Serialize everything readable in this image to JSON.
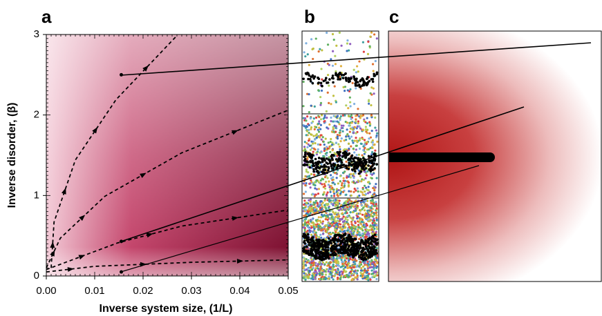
{
  "chart_data": {
    "type": "line",
    "panel_labels": [
      "a",
      "b",
      "c"
    ],
    "x_label": "Inverse system size, (1/L)",
    "y_label": "Inverse disorder, (β)",
    "xlim": [
      0,
      0.05
    ],
    "ylim": [
      0,
      3
    ],
    "xticks": [
      {
        "value": 0,
        "label": "0.00"
      },
      0.01,
      0.02,
      0.03,
      0.04,
      0.05
    ],
    "yticks": [
      0,
      1,
      2,
      3
    ],
    "series": [
      {
        "color": "#000000",
        "x": [
          0.001,
          0.0016,
          0.006,
          0.0144,
          0.0269
        ],
        "values": [
          0.1,
          0.67,
          1.44,
          2.19,
          2.98
        ]
      },
      {
        "color": "#000000",
        "x": [
          0,
          0.0029,
          0.0121,
          0.028,
          0.05
        ],
        "values": [
          0.1,
          0.47,
          0.99,
          1.53,
          2.06
        ]
      },
      {
        "color": "#000000",
        "x": [
          0,
          0.0147,
          0.028,
          0.05
        ],
        "values": [
          0.08,
          0.41,
          0.62,
          0.82
        ]
      },
      {
        "color": "#000000",
        "x": [
          0,
          0.01,
          0.03,
          0.05
        ],
        "values": [
          0.05,
          0.12,
          0.17,
          0.2
        ]
      }
    ],
    "markers": {
      "x": [
        0.0155,
        0.0155,
        0.0155
      ],
      "values": [
        2.5,
        0.43,
        0.05
      ]
    }
  }
}
